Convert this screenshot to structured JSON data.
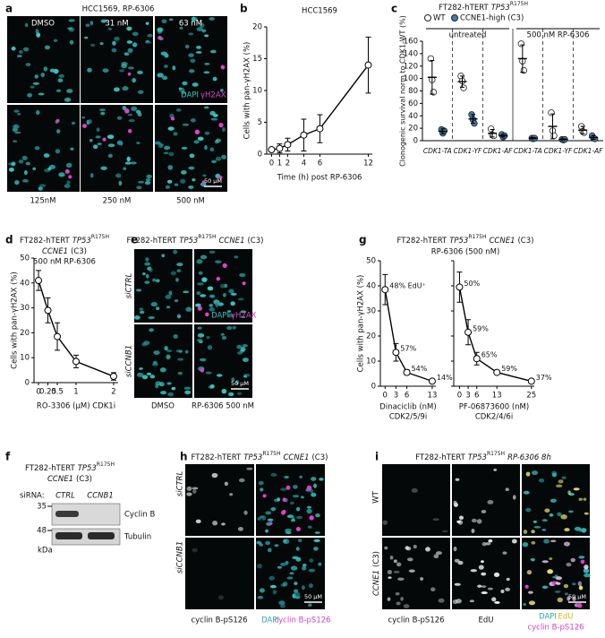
{
  "panels": {
    "a": {
      "letter": "a",
      "title": "HCC1569, RP-6306",
      "conditions": [
        "DMSO",
        "31 nM",
        "63 nM",
        "125nM",
        "250 nM",
        "500 nM"
      ],
      "stain": [
        "DAPI",
        "γH2AX"
      ],
      "scale_bar": "50 µM"
    },
    "e": {
      "letter": "e",
      "title": [
        "FT282-hTERT",
        "TP53",
        "R175H",
        "CCNE1",
        "(C3)"
      ],
      "rows": [
        "siCTRL",
        "siCCNB1"
      ],
      "columns": [
        "DMSO",
        "RP-6306 500 nM"
      ],
      "stain": [
        "DAPI",
        "γH2AX"
      ],
      "scale_bar": "50 µM"
    },
    "f": {
      "letter": "f",
      "title": [
        [
          "FT282-hTERT",
          "TP53",
          "R175H"
        ],
        [
          "CCNE1",
          "(C3)"
        ]
      ],
      "sirna_label": "siRNA:",
      "lanes": [
        "CTRL",
        "CCNB1"
      ],
      "markers": [
        35,
        48
      ],
      "marker_unit": "kDa",
      "bands": [
        "Cyclin B",
        "Tubulin"
      ]
    },
    "h": {
      "letter": "h",
      "title": [
        "FT282-hTERT",
        "TP53",
        "R175H",
        "CCNE1",
        "(C3)"
      ],
      "rows": [
        "siCTRL",
        "siCCNB1"
      ],
      "captions": [
        "cyclin B-pS126",
        [
          "DAPI",
          "cyclin B-pS126"
        ]
      ],
      "scale_bar": "50 µM"
    },
    "i": {
      "letter": "i",
      "title": [
        "FT282-hTERT",
        "TP53",
        "R175H",
        "RP-6306 8h"
      ],
      "rows": [
        "WT",
        [
          "CCNE1",
          "(C3)"
        ]
      ],
      "captions": [
        "cyclin B-pS126",
        "EdU",
        [
          "DAPI",
          "EdU",
          "cyclin B-pS126"
        ]
      ],
      "scale_bar": "50 µM"
    }
  },
  "chart_data": [
    {
      "panel": "b",
      "type": "line",
      "title": "HCC1569",
      "x_label": "Time (h) post RP-6306",
      "y_label": "Cells with pan-γH2AX (%)",
      "x": [
        0,
        1,
        2,
        4,
        6,
        12
      ],
      "values": [
        0.7,
        0.9,
        1.5,
        3,
        4,
        14
      ],
      "errors": [
        0.3,
        0.7,
        1,
        2.5,
        2.2,
        4.4
      ],
      "xlim": [
        -0.6,
        12.5
      ],
      "xticks": [
        0,
        1,
        2,
        4,
        6,
        12
      ],
      "ylim": [
        0,
        20
      ],
      "yticks": [
        0,
        5,
        10,
        15,
        20
      ],
      "color": "#000000"
    },
    {
      "panel": "c",
      "type": "dot",
      "title": [
        "FT282-hTERT",
        "TP53",
        "R175H"
      ],
      "y_label": "Clonogenic survival norm to CDK1-WT (%)",
      "groups": [
        "untreated",
        "500 nM RP-6306"
      ],
      "categories": [
        "CDK1-TA",
        "CDK1-YF",
        "CDK1-AF",
        "CDK1-TA",
        "CDK1-YF",
        "CDK1-AF"
      ],
      "series": [
        {
          "name": "WT",
          "color": "#ffffff",
          "values": [
            102,
            95,
            12,
            132,
            23,
            17
          ],
          "errors": [
            27,
            9,
            6,
            22,
            20,
            6
          ],
          "points": [
            [
              132,
              98,
              78
            ],
            [
              104,
              96,
              85
            ],
            [
              19,
              9,
              8
            ],
            [
              156,
              128,
              113
            ],
            [
              45,
              16,
              8
            ],
            [
              23,
              15,
              13
            ]
          ]
        },
        {
          "name": "CCNE1-high (C3)",
          "color": "#3c7fb1",
          "values": [
            15,
            35,
            8,
            4,
            2,
            5
          ],
          "errors": [
            4,
            7,
            2,
            1,
            1,
            3
          ],
          "points": [
            [
              18,
              12,
              16
            ],
            [
              42,
              34,
              28
            ],
            [
              10,
              6,
              8
            ],
            [
              4,
              3,
              4
            ],
            [
              2,
              1,
              2
            ],
            [
              8,
              4,
              3
            ]
          ]
        }
      ],
      "ylim": [
        0,
        160
      ],
      "yticks": [
        0,
        20,
        40,
        60,
        80,
        100,
        120,
        140,
        160
      ]
    },
    {
      "panel": "d",
      "type": "line",
      "title": [
        [
          "FT282-hTERT",
          "TP53",
          "R175H"
        ],
        [
          "CCNE1",
          "(C3)"
        ],
        [
          "500 nM RP-6306"
        ]
      ],
      "x_label": "RO-3306 (µM) CDK1i",
      "y_label": "Cells with pan-γH2AX (%)",
      "x": [
        0,
        0.25,
        0.5,
        1,
        2
      ],
      "values": [
        41,
        29,
        18.5,
        8.5,
        2.5
      ],
      "errors": [
        4,
        5,
        5.5,
        2.5,
        1.5
      ],
      "xlim": [
        -0.12,
        2.12
      ],
      "xticks": [
        0,
        0.25,
        0.5,
        1,
        2
      ],
      "ylim": [
        0,
        50
      ],
      "yticks": [
        0,
        10,
        20,
        30,
        40,
        50
      ],
      "color": "#000000"
    },
    {
      "panel": "g",
      "type": "line",
      "title": [
        [
          "FT282-hTERT",
          "TP53",
          "R175H",
          "CCNE1",
          "(C3)"
        ],
        [
          "RP-6306 (500 nM)"
        ]
      ],
      "x_label": [
        "Dinaciclib (nM)",
        "CDK2/5/9i"
      ],
      "y_label": "Cells with pan-γH2AX (%)",
      "x": [
        0,
        3,
        6,
        13
      ],
      "values": [
        38.5,
        13.5,
        5.5,
        2
      ],
      "errors": [
        6,
        3.5,
        1,
        0.5
      ],
      "annotations": [
        "48% EdU⁺",
        "57%",
        "54%",
        "14%"
      ],
      "xlim": [
        -1.3,
        14
      ],
      "xticks": [
        0,
        3,
        6,
        13
      ],
      "ylim": [
        0,
        50
      ],
      "yticks": [
        0,
        10,
        20,
        30,
        40,
        50
      ],
      "color": "#000000"
    },
    {
      "type": "line",
      "x_label": [
        "PF-06873600 (nM)",
        "CDK2/4/6i"
      ],
      "x": [
        0,
        3,
        6,
        13,
        25
      ],
      "values": [
        39.5,
        21.5,
        11,
        5.5,
        2
      ],
      "errors": [
        6,
        5,
        2.5,
        0.6,
        0.5
      ],
      "annotations": [
        "50%",
        "59%",
        "65%",
        "59%",
        "37%"
      ],
      "xlim": [
        -2,
        26
      ],
      "xticks": [
        0,
        3,
        6,
        13,
        25
      ],
      "ylim": [
        0,
        50
      ],
      "yticks": [
        0,
        10,
        20,
        30,
        40,
        50
      ],
      "show_ytick_labels": false,
      "color": "#000000"
    }
  ]
}
